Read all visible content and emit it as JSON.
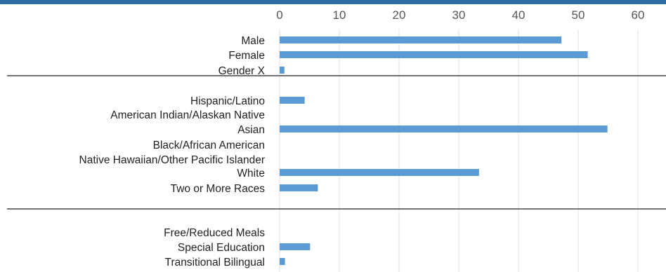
{
  "theme": {
    "bar_color": "#5b9bd5",
    "band_color": "#2e6da4",
    "grid_color": "#e3e3e3",
    "divider_color": "#444444",
    "text_color": "#222222",
    "tick_color": "#555555"
  },
  "chart_data": {
    "type": "bar",
    "orientation": "horizontal",
    "title": "",
    "xlabel": "",
    "ylabel": "",
    "xlim": [
      0,
      60
    ],
    "x_ticks": [
      0,
      10,
      20,
      30,
      40,
      50,
      60
    ],
    "x_axis_position": "top",
    "grid": true,
    "groups": [
      {
        "categories": [
          "Male",
          "Female",
          "Gender X"
        ],
        "values": [
          47.2,
          51.6,
          0.8
        ]
      },
      {
        "categories": [
          "Hispanic/Latino",
          "American Indian/Alaskan Native",
          "Asian",
          "Black/African American",
          "Native Hawaiian/Other Pacific Islander",
          "White",
          "Two or More Races"
        ],
        "values": [
          4.2,
          0,
          54.9,
          0,
          0,
          33.4,
          6.4
        ]
      },
      {
        "categories": [
          "Free/Reduced Meals",
          "Special Education",
          "Transitional Bilingual"
        ],
        "values": [
          0,
          5.1,
          0.9
        ]
      }
    ]
  }
}
